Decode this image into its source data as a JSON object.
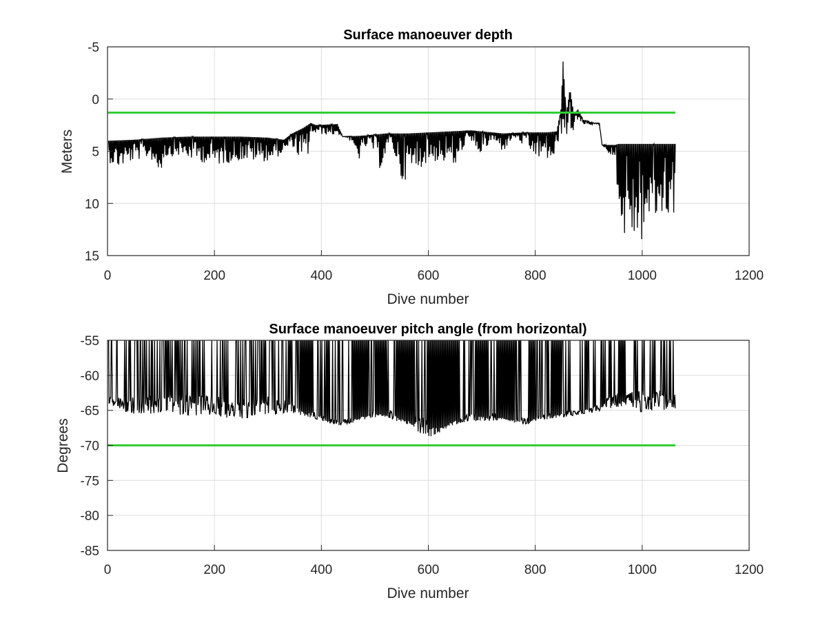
{
  "chart_data": [
    {
      "type": "line",
      "title": "Surface manoeuver depth",
      "xlabel": "Dive number",
      "ylabel": "Meters",
      "xlim": [
        0,
        1200
      ],
      "ylim": [
        -5,
        15
      ],
      "y_reversed": true,
      "grid": true,
      "xticks": [
        "0",
        "200",
        "400",
        "600",
        "800",
        "1000",
        "1200"
      ],
      "yticks": [
        "-5",
        "0",
        "5",
        "10",
        "15"
      ],
      "reference_line": {
        "y": 1.3,
        "x": [
          0,
          1062
        ],
        "color": "#33cc33"
      },
      "series": [
        {
          "color": "#000000",
          "upper": [
            [
              0,
              4.0
            ],
            [
              50,
              3.9
            ],
            [
              100,
              3.7
            ],
            [
              150,
              3.6
            ],
            [
              200,
              3.6
            ],
            [
              250,
              3.6
            ],
            [
              300,
              3.7
            ],
            [
              330,
              3.9
            ],
            [
              345,
              3.3
            ],
            [
              365,
              2.8
            ],
            [
              380,
              2.3
            ],
            [
              390,
              2.5
            ],
            [
              430,
              2.4
            ],
            [
              440,
              3.6
            ],
            [
              480,
              3.5
            ],
            [
              520,
              3.3
            ],
            [
              560,
              3.3
            ],
            [
              600,
              3.2
            ],
            [
              640,
              3.1
            ],
            [
              680,
              3.0
            ],
            [
              700,
              3.1
            ],
            [
              740,
              3.3
            ],
            [
              780,
              3.2
            ],
            [
              820,
              3.2
            ],
            [
              840,
              3.1
            ],
            [
              848,
              1.0
            ],
            [
              852,
              -3.6
            ],
            [
              858,
              1.5
            ],
            [
              865,
              -1.0
            ],
            [
              872,
              1.4
            ],
            [
              880,
              1.0
            ],
            [
              890,
              2.0
            ],
            [
              910,
              2.3
            ],
            [
              920,
              2.3
            ],
            [
              925,
              4.4
            ],
            [
              950,
              4.4
            ],
            [
              955,
              4.3
            ],
            [
              1062,
              4.3
            ]
          ],
          "lower": [
            [
              0,
              6.0
            ],
            [
              20,
              6.6
            ],
            [
              50,
              5.9
            ],
            [
              80,
              5.6
            ],
            [
              100,
              7.5
            ],
            [
              103,
              5.7
            ],
            [
              130,
              5.4
            ],
            [
              200,
              6.4
            ],
            [
              250,
              5.9
            ],
            [
              300,
              6.0
            ],
            [
              320,
              5.5
            ],
            [
              330,
              5.1
            ],
            [
              345,
              4.4
            ],
            [
              360,
              5.9
            ],
            [
              372,
              6.7
            ],
            [
              380,
              3.3
            ],
            [
              430,
              3.5
            ],
            [
              440,
              3.6
            ],
            [
              450,
              3.7
            ],
            [
              470,
              5.9
            ],
            [
              490,
              4.0
            ],
            [
              510,
              6.8
            ],
            [
              530,
              4.0
            ],
            [
              550,
              8.0
            ],
            [
              600,
              6.0
            ],
            [
              640,
              6.1
            ],
            [
              655,
              6.9
            ],
            [
              670,
              3.9
            ],
            [
              700,
              5.4
            ],
            [
              720,
              3.9
            ],
            [
              740,
              5.1
            ],
            [
              760,
              3.6
            ],
            [
              800,
              5.6
            ],
            [
              830,
              5.9
            ],
            [
              840,
              6.0
            ],
            [
              845,
              3.3
            ],
            [
              862,
              3.8
            ],
            [
              880,
              2.4
            ],
            [
              920,
              2.5
            ],
            [
              925,
              4.4
            ],
            [
              950,
              6.0
            ],
            [
              960,
              13.5
            ],
            [
              980,
              13.2
            ],
            [
              995,
              14.4
            ],
            [
              1010,
              12.1
            ],
            [
              1030,
              11.6
            ],
            [
              1062,
              11.0
            ]
          ]
        }
      ]
    },
    {
      "type": "line",
      "title": "Surface manoeuver pitch angle (from horizontal)",
      "xlabel": "Dive number",
      "ylabel": "Degrees",
      "xlim": [
        0,
        1200
      ],
      "ylim": [
        -85,
        -55
      ],
      "grid": true,
      "xticks": [
        "0",
        "200",
        "400",
        "600",
        "800",
        "1000",
        "1200"
      ],
      "yticks": [
        "-55",
        "-60",
        "-65",
        "-70",
        "-75",
        "-80",
        "-85"
      ],
      "reference_line": {
        "y": -70,
        "x": [
          0,
          1062
        ],
        "color": "#33cc33"
      },
      "series": [
        {
          "color": "#000000",
          "upper": [
            [
              0,
              -55
            ],
            [
              1062,
              -55
            ]
          ],
          "lower": [
            [
              0,
              -64.0
            ],
            [
              40,
              -65.6
            ],
            [
              100,
              -65.5
            ],
            [
              200,
              -66.0
            ],
            [
              260,
              -66.2
            ],
            [
              300,
              -65.8
            ],
            [
              340,
              -65.3
            ],
            [
              370,
              -65.8
            ],
            [
              400,
              -66.5
            ],
            [
              420,
              -67.0
            ],
            [
              440,
              -67.3
            ],
            [
              470,
              -66.5
            ],
            [
              520,
              -66.0
            ],
            [
              560,
              -67.0
            ],
            [
              600,
              -69.0
            ],
            [
              650,
              -67.0
            ],
            [
              700,
              -66.5
            ],
            [
              750,
              -66.5
            ],
            [
              780,
              -67.3
            ],
            [
              800,
              -66.5
            ],
            [
              820,
              -66.3
            ],
            [
              850,
              -66.0
            ],
            [
              900,
              -65.5
            ],
            [
              950,
              -64.5
            ],
            [
              1000,
              -65.3
            ],
            [
              1062,
              -65.0
            ]
          ],
          "trough": [
            [
              0,
              -63.0
            ],
            [
              30,
              -63.2
            ],
            [
              60,
              -63.0
            ],
            [
              100,
              -62.8
            ],
            [
              150,
              -62.6
            ],
            [
              200,
              -63.0
            ],
            [
              260,
              -63.2
            ],
            [
              300,
              -63.0
            ],
            [
              330,
              -63.5
            ],
            [
              345,
              -64.0
            ],
            [
              360,
              -64.5
            ],
            [
              380,
              -64.8
            ],
            [
              400,
              -65.5
            ],
            [
              420,
              -66.3
            ],
            [
              440,
              -66.5
            ],
            [
              450,
              -66.0
            ],
            [
              470,
              -65.5
            ],
            [
              500,
              -64.8
            ],
            [
              530,
              -65.0
            ],
            [
              560,
              -65.5
            ],
            [
              590,
              -66.0
            ],
            [
              620,
              -66.5
            ],
            [
              650,
              -66.0
            ],
            [
              680,
              -65.5
            ],
            [
              700,
              -65.0
            ],
            [
              730,
              -65.5
            ],
            [
              760,
              -66.0
            ],
            [
              790,
              -66.0
            ],
            [
              820,
              -65.5
            ],
            [
              850,
              -65.0
            ],
            [
              880,
              -65.0
            ],
            [
              900,
              -64.8
            ],
            [
              930,
              -63.5
            ],
            [
              950,
              -62.5
            ],
            [
              1000,
              -62.0
            ],
            [
              1062,
              -62.0
            ]
          ],
          "dense_bands": [
            [
              360,
              382
            ],
            [
              458,
              488
            ],
            [
              500,
              522
            ],
            [
              540,
              575
            ],
            [
              598,
              658
            ],
            [
              688,
              712
            ],
            [
              728,
              762
            ],
            [
              788,
              800
            ],
            [
              830,
              850
            ],
            [
              955,
              968
            ]
          ]
        }
      ]
    }
  ]
}
